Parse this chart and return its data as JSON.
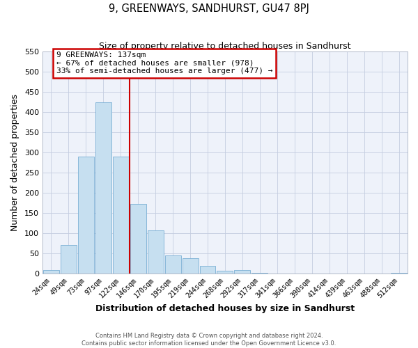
{
  "title": "9, GREENWAYS, SANDHURST, GU47 8PJ",
  "subtitle": "Size of property relative to detached houses in Sandhurst",
  "xlabel": "Distribution of detached houses by size in Sandhurst",
  "ylabel": "Number of detached properties",
  "bar_labels": [
    "24sqm",
    "49sqm",
    "73sqm",
    "97sqm",
    "122sqm",
    "146sqm",
    "170sqm",
    "195sqm",
    "219sqm",
    "244sqm",
    "268sqm",
    "292sqm",
    "317sqm",
    "341sqm",
    "366sqm",
    "390sqm",
    "414sqm",
    "439sqm",
    "463sqm",
    "488sqm",
    "512sqm"
  ],
  "bar_heights": [
    8,
    70,
    290,
    425,
    290,
    172,
    106,
    44,
    38,
    18,
    6,
    8,
    2,
    0,
    0,
    0,
    0,
    0,
    0,
    0,
    2
  ],
  "bar_color": "#c6dff0",
  "bar_edge_color": "#7aafd4",
  "vline_color": "#cc0000",
  "annotation_title": "9 GREENWAYS: 137sqm",
  "annotation_line1": "← 67% of detached houses are smaller (978)",
  "annotation_line2": "33% of semi-detached houses are larger (477) →",
  "annotation_box_color": "#ffffff",
  "annotation_box_edge": "#cc0000",
  "ylim": [
    0,
    550
  ],
  "yticks": [
    0,
    50,
    100,
    150,
    200,
    250,
    300,
    350,
    400,
    450,
    500,
    550
  ],
  "footer1": "Contains HM Land Registry data © Crown copyright and database right 2024.",
  "footer2": "Contains public sector information licensed under the Open Government Licence v3.0.",
  "bg_color": "#eef2fa",
  "grid_color": "#c5cde0"
}
